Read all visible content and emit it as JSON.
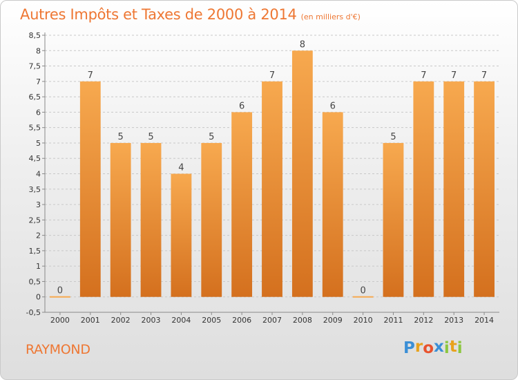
{
  "title": "Autres Impôts et Taxes de 2000 à 2014",
  "unit": "(en milliers d'€)",
  "commune": "RAYMOND",
  "logo": {
    "letters": [
      "P",
      "r",
      "o",
      "x",
      "i",
      "t",
      "i"
    ],
    "colors": [
      "#3b8fd6",
      "#e8a21c",
      "#e8532e",
      "#3b8fd6",
      "#8cc63f",
      "#e8a21c",
      "#8cc63f"
    ]
  },
  "colors": {
    "title": "#ee7733",
    "bar_top": "#f7a94f",
    "bar_bottom": "#d4701e",
    "axis_text": "#333333",
    "grid": "#c8c8c8"
  },
  "chart_data": {
    "type": "bar",
    "categories": [
      "2000",
      "2001",
      "2002",
      "2003",
      "2004",
      "2005",
      "2006",
      "2007",
      "2008",
      "2009",
      "2010",
      "2011",
      "2012",
      "2013",
      "2014"
    ],
    "values": [
      0,
      7,
      5,
      5,
      4,
      5,
      6,
      7,
      8,
      6,
      0,
      5,
      7,
      7,
      7
    ],
    "data_labels": [
      "0",
      "7",
      "5",
      "5",
      "4",
      "5",
      "6",
      "7",
      "8",
      "6",
      "0",
      "5",
      "7",
      "7",
      "7"
    ],
    "ylim": [
      -0.5,
      8.5
    ],
    "yticks": [
      "-0,5",
      "0",
      "0,5",
      "1",
      "1,5",
      "2",
      "2,5",
      "3",
      "3,5",
      "4",
      "4,5",
      "5",
      "5,5",
      "6",
      "6,5",
      "7",
      "7,5",
      "8",
      "8,5"
    ],
    "grid": true
  }
}
